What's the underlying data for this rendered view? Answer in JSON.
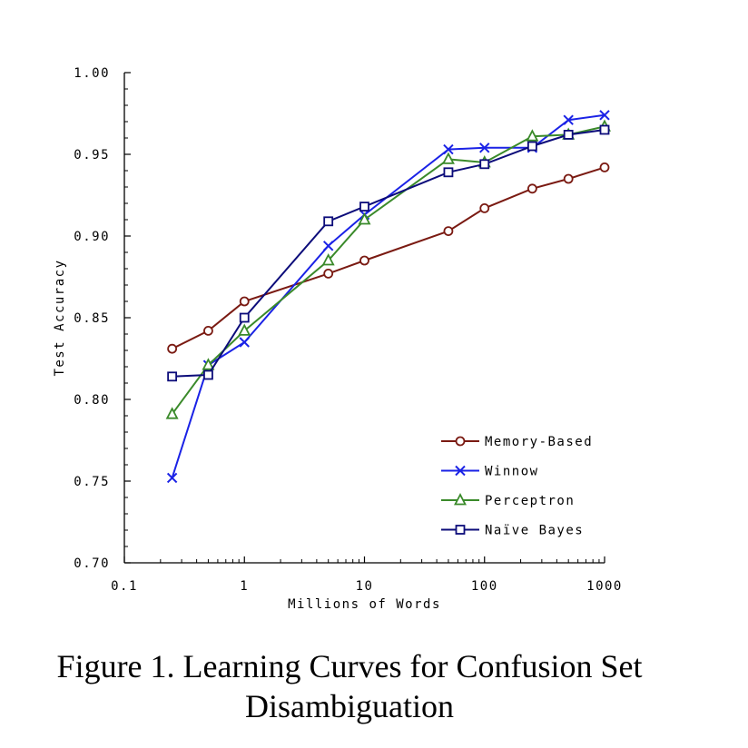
{
  "chart_data": {
    "type": "line",
    "title": "",
    "xlabel": "Millions of Words",
    "ylabel": "Test Accuracy",
    "xscale": "log",
    "xlim": [
      0.1,
      1000
    ],
    "ylim": [
      0.7,
      1.0
    ],
    "xticks": [
      {
        "value": 0.1,
        "label": "0.1"
      },
      {
        "value": 1,
        "label": "1"
      },
      {
        "value": 10,
        "label": "10"
      },
      {
        "value": 100,
        "label": "100"
      },
      {
        "value": 1000,
        "label": "1000"
      }
    ],
    "yticks": [
      {
        "value": 0.7,
        "label": "0.70"
      },
      {
        "value": 0.75,
        "label": "0.75"
      },
      {
        "value": 0.8,
        "label": "0.80"
      },
      {
        "value": 0.85,
        "label": "0.85"
      },
      {
        "value": 0.9,
        "label": "0.90"
      },
      {
        "value": 0.95,
        "label": "0.95"
      },
      {
        "value": 1.0,
        "label": "1.00"
      }
    ],
    "x": [
      0.25,
      0.5,
      1,
      5,
      10,
      50,
      100,
      250,
      500,
      1000
    ],
    "legend_position": "lower-right",
    "grid": false,
    "series": [
      {
        "name": "Memory-Based",
        "marker": "circle",
        "color": "#7a1a12",
        "values": [
          0.831,
          0.842,
          0.86,
          0.877,
          0.885,
          0.903,
          0.917,
          0.929,
          0.935,
          0.942
        ]
      },
      {
        "name": "Winnow",
        "marker": "x",
        "color": "#1a22e6",
        "values": [
          0.752,
          0.821,
          0.835,
          0.894,
          0.913,
          0.953,
          0.954,
          0.954,
          0.971,
          0.974
        ]
      },
      {
        "name": "Perceptron",
        "marker": "triangle",
        "color": "#3a8a2a",
        "values": [
          0.791,
          0.821,
          0.842,
          0.885,
          0.91,
          0.947,
          0.945,
          0.961,
          0.962,
          0.967
        ]
      },
      {
        "name": "Naïve Bayes",
        "marker": "square",
        "color": "#0c0c7a",
        "values": [
          0.814,
          0.815,
          0.85,
          0.909,
          0.918,
          0.939,
          0.944,
          0.955,
          0.962,
          0.965
        ]
      }
    ]
  },
  "caption": "Figure 1. Learning Curves for Confusion Set Disambiguation"
}
